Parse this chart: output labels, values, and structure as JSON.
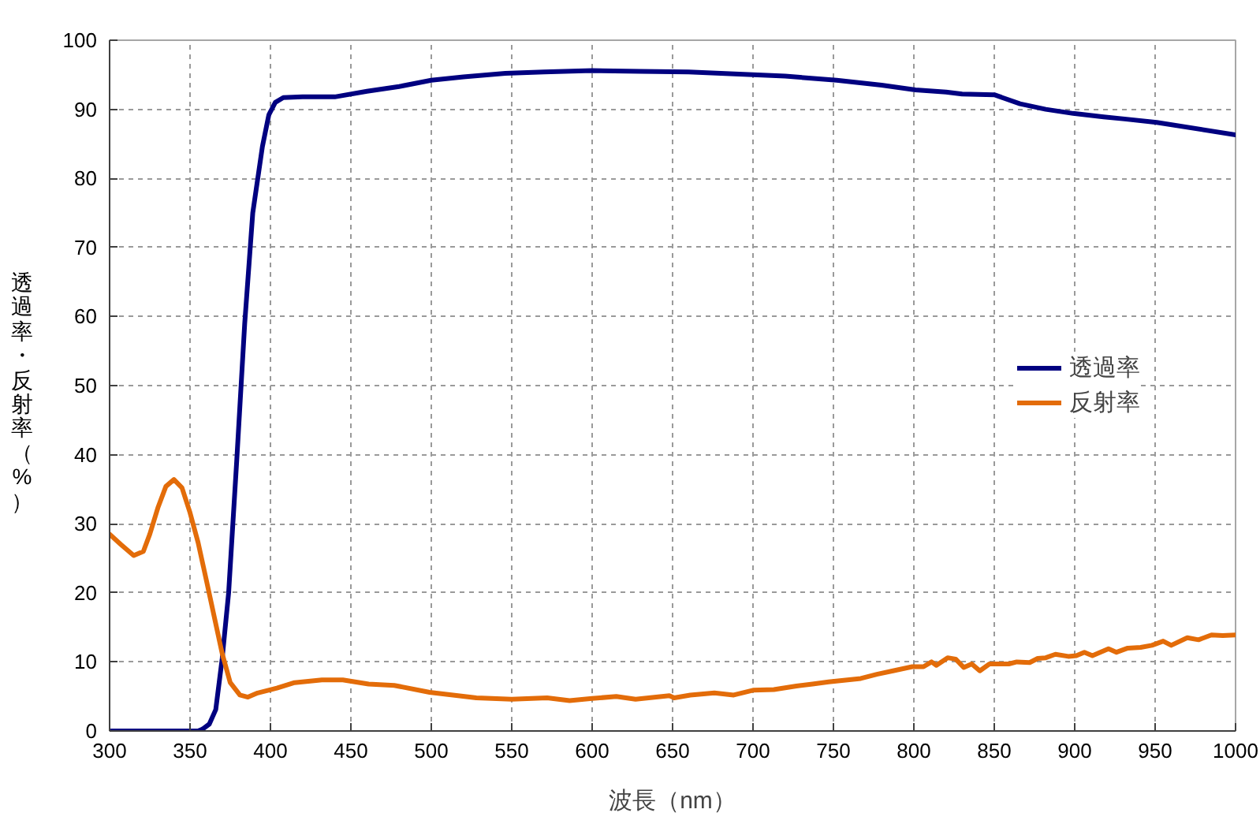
{
  "chart_data": {
    "type": "line",
    "xlabel": "波長（nm）",
    "ylabel": "透過率・反射率（%）",
    "xlim": [
      300,
      1000
    ],
    "xticks": [
      300,
      350,
      400,
      450,
      500,
      550,
      600,
      650,
      700,
      750,
      800,
      850,
      900,
      950,
      1000
    ],
    "ylim": [
      0,
      100
    ],
    "yticks": [
      0,
      10,
      20,
      30,
      40,
      50,
      60,
      70,
      80,
      90,
      100
    ],
    "grid": true,
    "legend": "right",
    "series": [
      {
        "name": "透過率",
        "color": "#000080",
        "x": [
          300,
          355,
          358,
          362,
          366,
          370,
          374,
          379,
          384,
          389,
          395,
          399,
          403,
          408,
          420,
          440,
          460,
          480,
          500,
          520,
          546,
          570,
          600,
          630,
          660,
          700,
          720,
          752,
          780,
          801,
          820,
          830,
          850,
          866,
          882,
          899,
          918,
          931,
          951,
          1000
        ],
        "values": [
          0,
          0,
          0.3,
          1,
          3.1,
          10.5,
          20,
          39,
          59,
          75,
          84.6,
          89.2,
          91,
          91.7,
          91.8,
          91.8,
          92.6,
          93.3,
          94.2,
          94.7,
          95.2,
          95.4,
          95.6,
          95.5,
          95.4,
          95.0,
          94.8,
          94.2,
          93.5,
          92.8,
          92.5,
          92.2,
          92.1,
          90.8,
          90.0,
          89.4,
          88.9,
          88.6,
          88.1,
          86.3
        ]
      },
      {
        "name": "反射率",
        "color": "#e36c09",
        "x": [
          300,
          307,
          315,
          321,
          325,
          330,
          335,
          340,
          345,
          350,
          355,
          360,
          365,
          370,
          375,
          381,
          386,
          392,
          404,
          415,
          432,
          445,
          461,
          477,
          499,
          528,
          550,
          572,
          586,
          600,
          615,
          627,
          648,
          651,
          661,
          676,
          688,
          700,
          713,
          727,
          737,
          747,
          767,
          777,
          787,
          799,
          806,
          811,
          814,
          821,
          826,
          831,
          836,
          841,
          847,
          859,
          864,
          872,
          877,
          882,
          888,
          896,
          901,
          906,
          911,
          921,
          926,
          933,
          941,
          948,
          955,
          960,
          970,
          977,
          985,
          992,
          1000
        ],
        "values": [
          28.5,
          27.0,
          25.4,
          26.0,
          28.5,
          32.3,
          35.4,
          36.4,
          35.2,
          31.6,
          27.3,
          22.0,
          16.6,
          11.2,
          7.0,
          5.2,
          4.9,
          5.5,
          6.2,
          7.0,
          7.4,
          7.4,
          6.8,
          6.6,
          5.6,
          4.8,
          4.6,
          4.8,
          4.4,
          4.7,
          5.0,
          4.6,
          5.1,
          4.8,
          5.2,
          5.5,
          5.2,
          5.9,
          6.0,
          6.5,
          6.8,
          7.1,
          7.6,
          8.2,
          8.7,
          9.3,
          9.3,
          10.0,
          9.5,
          10.6,
          10.4,
          9.2,
          9.7,
          8.7,
          9.7,
          9.7,
          10.0,
          9.9,
          10.5,
          10.6,
          11.1,
          10.8,
          10.9,
          11.4,
          10.9,
          11.9,
          11.4,
          12.0,
          12.1,
          12.4,
          13.0,
          12.4,
          13.5,
          13.2,
          13.9,
          13.8,
          13.9
        ]
      }
    ]
  }
}
